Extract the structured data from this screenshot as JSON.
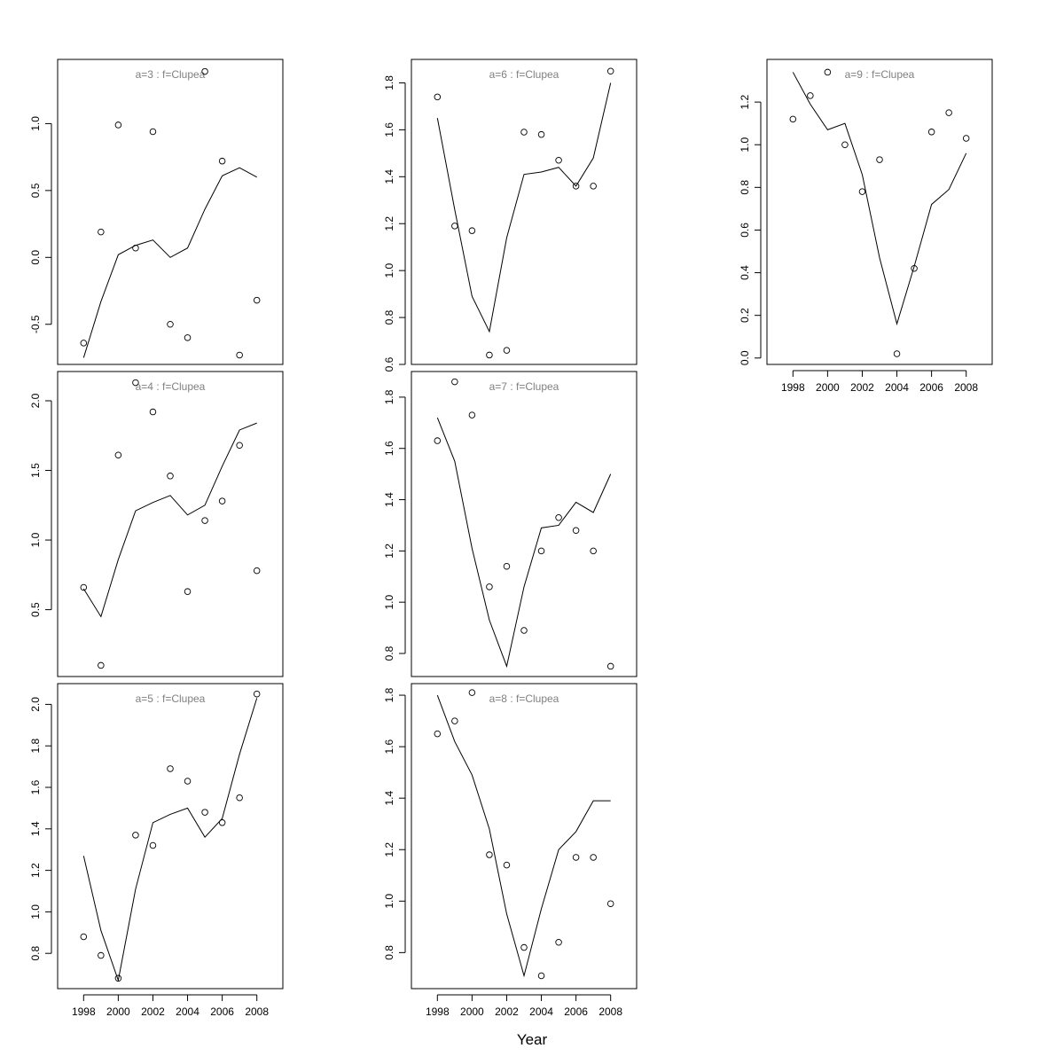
{
  "chart_data": {
    "type": "line",
    "xlabel": "Year",
    "xticks": [
      1998,
      2000,
      2002,
      2004,
      2006,
      2008
    ],
    "xlim": [
      1996.5,
      2009.5
    ],
    "grid": false,
    "x": [
      1998,
      1999,
      2000,
      2001,
      2002,
      2003,
      2004,
      2005,
      2006,
      2007,
      2008
    ],
    "panels": [
      {
        "title": "a=3  :  f=Clupea",
        "ylim": [
          -0.8,
          1.48
        ],
        "yticks": [
          -0.5,
          0.0,
          0.5,
          1.0
        ],
        "show_xaxis": false,
        "points": [
          -0.64,
          0.19,
          0.99,
          0.07,
          0.94,
          -0.5,
          -0.6,
          1.39,
          0.72,
          -0.73,
          -0.32
        ],
        "line": [
          -0.75,
          -0.33,
          0.02,
          0.09,
          0.13,
          0.0,
          0.07,
          0.36,
          0.61,
          0.67,
          0.6
        ]
      },
      {
        "title": "a=4  :  f=Clupea",
        "ylim": [
          0.02,
          2.21
        ],
        "yticks": [
          0.5,
          1.0,
          1.5,
          2.0
        ],
        "show_xaxis": false,
        "points": [
          0.66,
          0.1,
          1.61,
          2.13,
          1.92,
          1.46,
          0.63,
          1.14,
          1.28,
          1.68,
          0.78
        ],
        "line": [
          0.65,
          0.45,
          0.86,
          1.21,
          1.27,
          1.32,
          1.18,
          1.25,
          1.53,
          1.79,
          1.84
        ]
      },
      {
        "title": "a=5  :  f=Clupea",
        "ylim": [
          0.63,
          2.1
        ],
        "yticks": [
          0.8,
          1.0,
          1.2,
          1.4,
          1.6,
          1.8,
          2.0
        ],
        "show_xaxis": true,
        "points": [
          0.88,
          0.79,
          0.68,
          1.37,
          1.32,
          1.69,
          1.63,
          1.48,
          1.43,
          1.55,
          2.05
        ],
        "line": [
          1.27,
          0.91,
          0.67,
          1.11,
          1.43,
          1.47,
          1.5,
          1.36,
          1.45,
          1.76,
          2.03
        ]
      },
      {
        "title": "a=6  :  f=Clupea",
        "ylim": [
          0.6,
          1.9
        ],
        "yticks": [
          0.6,
          0.8,
          1.0,
          1.2,
          1.4,
          1.6,
          1.8
        ],
        "show_xaxis": false,
        "points": [
          1.74,
          1.19,
          1.17,
          0.64,
          0.66,
          1.59,
          1.58,
          1.47,
          1.36,
          1.36,
          1.85
        ],
        "line": [
          1.65,
          1.26,
          0.89,
          0.74,
          1.14,
          1.41,
          1.42,
          1.44,
          1.36,
          1.48,
          1.8
        ]
      },
      {
        "title": "a=7  :  f=Clupea",
        "ylim": [
          0.71,
          1.9
        ],
        "yticks": [
          0.8,
          1.0,
          1.2,
          1.4,
          1.6,
          1.8
        ],
        "show_xaxis": false,
        "points": [
          1.63,
          1.86,
          1.73,
          1.06,
          1.14,
          0.89,
          1.2,
          1.33,
          1.28,
          1.2,
          0.75
        ],
        "line": [
          1.72,
          1.55,
          1.21,
          0.93,
          0.75,
          1.06,
          1.29,
          1.3,
          1.39,
          1.35,
          1.5
        ]
      },
      {
        "title": "a=8  :  f=Clupea",
        "ylim": [
          0.66,
          1.845
        ],
        "yticks": [
          0.8,
          1.0,
          1.2,
          1.4,
          1.6,
          1.8
        ],
        "show_xaxis": true,
        "points": [
          1.65,
          1.7,
          1.81,
          1.18,
          1.14,
          0.82,
          0.71,
          0.84,
          1.17,
          1.17,
          0.99
        ],
        "line": [
          1.8,
          1.62,
          1.49,
          1.28,
          0.95,
          0.71,
          0.97,
          1.2,
          1.27,
          1.39,
          1.39
        ]
      },
      {
        "title": "a=9  :  f=Clupea",
        "ylim": [
          -0.03,
          1.4
        ],
        "yticks": [
          0.0,
          0.2,
          0.4,
          0.6,
          0.8,
          1.0,
          1.2
        ],
        "show_xaxis": true,
        "points": [
          1.12,
          1.23,
          1.34,
          1.0,
          0.78,
          0.93,
          0.02,
          0.42,
          1.06,
          1.15,
          1.03
        ],
        "line": [
          1.34,
          1.19,
          1.07,
          1.1,
          0.86,
          0.47,
          0.16,
          0.43,
          0.72,
          0.79,
          0.96
        ]
      }
    ]
  },
  "colors": {
    "title": "#808080",
    "ink": "#000000"
  }
}
